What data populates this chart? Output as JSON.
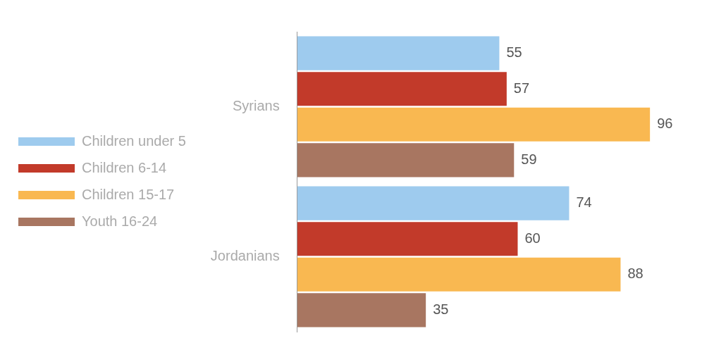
{
  "chart_data": {
    "type": "bar",
    "orientation": "horizontal",
    "categories": [
      "Syrians",
      "Jordanians"
    ],
    "series": [
      {
        "name": "Children under 5",
        "color": "#9ecbee",
        "values": [
          55,
          74
        ]
      },
      {
        "name": "Children 6-14",
        "color": "#c23a2a",
        "values": [
          57,
          60
        ]
      },
      {
        "name": "Children 15-17",
        "color": "#f9b851",
        "values": [
          96,
          88
        ]
      },
      {
        "name": "Youth 16-24",
        "color": "#a87661",
        "values": [
          59,
          35
        ]
      }
    ],
    "data_labels": true,
    "legend": "left",
    "grid": false
  }
}
